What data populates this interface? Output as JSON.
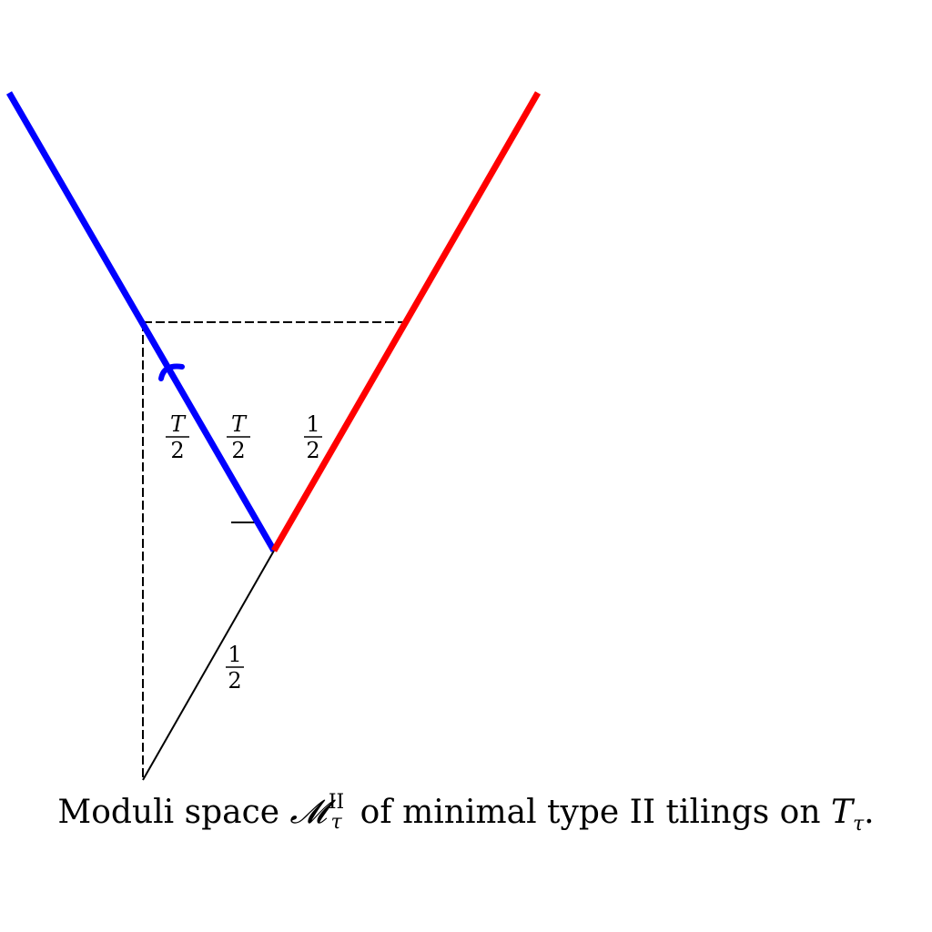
{
  "figure": {
    "labels": {
      "half_num": "1",
      "half_den": "2",
      "t_num": "T",
      "t_den": "2"
    },
    "colors": {
      "blue_edge": "#0000ff",
      "red_edge": "#ff0000",
      "construction": "#000000"
    }
  },
  "caption": {
    "prefix": "Moduli space ",
    "symbol": "𝓜",
    "symbol_sup": "II",
    "symbol_sub": "τ",
    "middle": " of minimal type II tilings on ",
    "torus": "T",
    "torus_sub": "τ",
    "suffix": "."
  }
}
